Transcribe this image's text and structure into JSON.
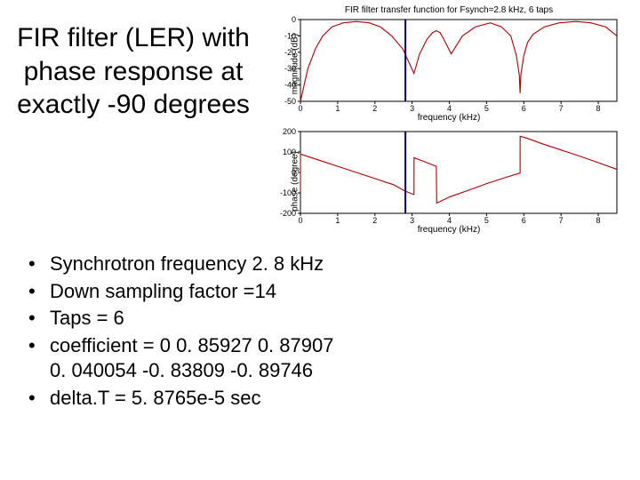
{
  "title": "FIR filter (LER) with phase response at exactly -90 degrees",
  "mag_chart": {
    "type": "line",
    "title": "FIR filter transfer function for Fsynch=2.8 kHz, 6 taps",
    "xlabel": "frequency (kHz)",
    "ylabel": "magnitude (dB)",
    "xlim": [
      0,
      8.5
    ],
    "ylim": [
      -50,
      0
    ],
    "xticks": [
      0,
      1,
      2,
      3,
      4,
      5,
      6,
      7,
      8
    ],
    "yticks": [
      0,
      -10,
      -20,
      -30,
      -40,
      -50
    ],
    "line_color": "#aa0000",
    "axis_color": "#000000",
    "background_color": "#ffffff",
    "x": [
      0,
      0.2,
      0.4,
      0.6,
      0.85,
      1.15,
      1.5,
      1.85,
      2.15,
      2.45,
      2.75,
      2.95,
      3.05,
      3.2,
      3.4,
      3.55,
      3.65,
      3.75,
      3.85,
      4.05,
      4.35,
      4.7,
      5.1,
      5.4,
      5.65,
      5.8,
      5.88,
      5.9,
      5.92,
      6.0,
      6.1,
      6.25,
      6.55,
      6.95,
      7.4,
      7.8,
      8.2,
      8.5
    ],
    "y": [
      -50,
      -30,
      -18,
      -10,
      -4.5,
      -2,
      -1.2,
      -2,
      -4.5,
      -10,
      -18,
      -28,
      -33,
      -21,
      -12,
      -8,
      -6.8,
      -8,
      -12,
      -21,
      -10,
      -4.5,
      -2,
      -4.5,
      -10,
      -22,
      -34,
      -45,
      -34,
      -22,
      -14,
      -9,
      -4.5,
      -2,
      -1.2,
      -2,
      -4.5,
      -10
    ],
    "marker_x": 2.82
  },
  "phase_chart": {
    "type": "line",
    "xlabel": "frequency (kHz)",
    "ylabel": "phase (degree)",
    "xlim": [
      0,
      8.5
    ],
    "ylim": [
      -200,
      200
    ],
    "xticks": [
      0,
      1,
      2,
      3,
      4,
      5,
      6,
      7,
      8
    ],
    "yticks": [
      200,
      100,
      0,
      -100,
      -200
    ],
    "line_color": "#aa0000",
    "axis_color": "#000000",
    "background_color": "#ffffff",
    "x": [
      0,
      0.001,
      0.5,
      1.0,
      1.5,
      2.0,
      2.5,
      2.8,
      3.0,
      3.05,
      3.051,
      3.3,
      3.65,
      3.66,
      4.0,
      4.5,
      5.0,
      5.5,
      5.9,
      5.901,
      6.0,
      6.2,
      6.5,
      7.0,
      7.5,
      8.0,
      8.5
    ],
    "y": [
      -90,
      90,
      60,
      30,
      0,
      -30,
      -60,
      -90,
      -105,
      -108,
      72,
      55,
      30,
      -150,
      -120,
      -88,
      -55,
      -25,
      -3,
      177,
      172,
      160,
      140,
      110,
      80,
      48,
      15
    ],
    "marker_x": 2.82
  },
  "bullets": {
    "b1": "Synchrotron frequency 2. 8 kHz",
    "b2": "Down sampling factor =14",
    "b3": "Taps = 6",
    "b4a": "coefficient  =       0               0. 85927       0. 87907",
    "b4b": "0. 040054    -0. 83809      -0. 89746",
    "b5": "delta.T = 5. 8765e-5 sec"
  }
}
